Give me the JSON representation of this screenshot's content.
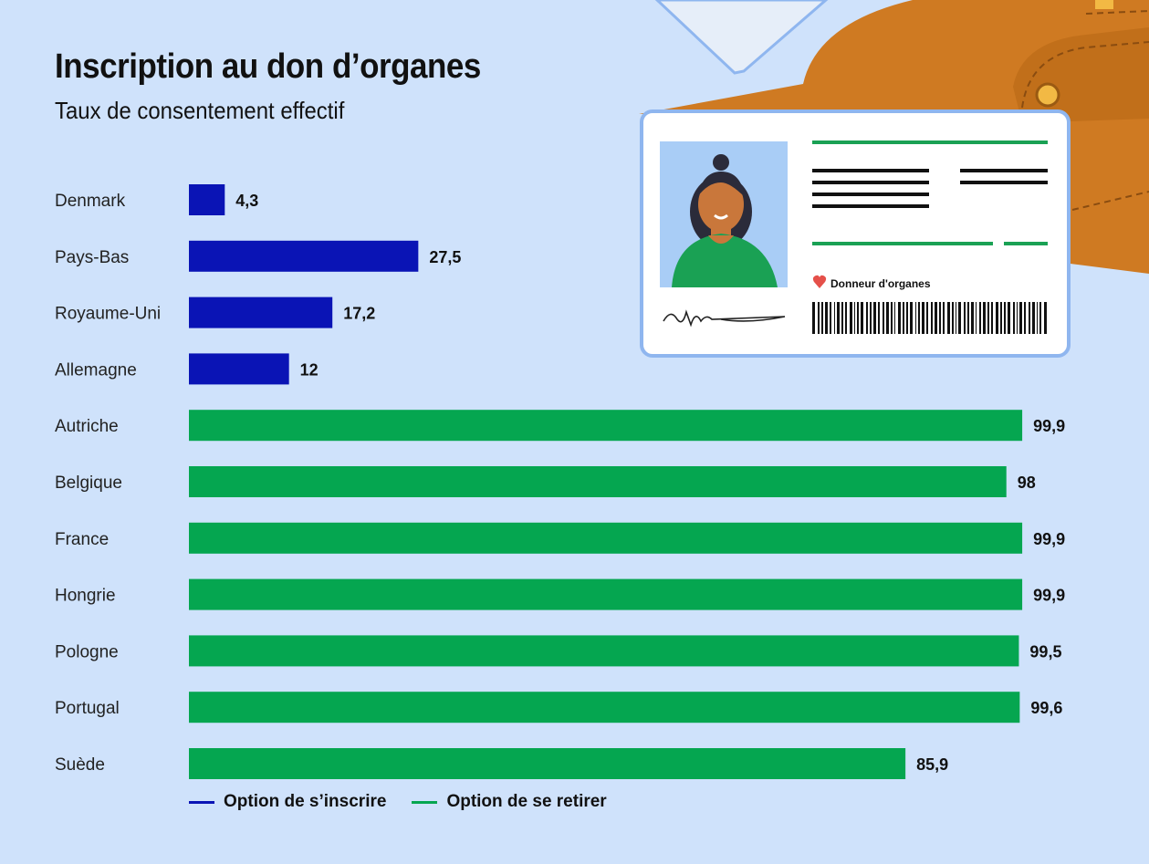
{
  "title": "Inscription au don d’organes",
  "subtitle": "Taux de consentement effectif",
  "card": {
    "label": "Donneur d'organes",
    "heart_icon": "heart-icon"
  },
  "colors": {
    "opt_in": "#0a14b5",
    "opt_out": "#05a650",
    "background": "#cfe2fb",
    "wallet": "#cf7a22",
    "card": "#ffffff",
    "photo_bg": "#a9cdf6",
    "shirt": "#1aa154",
    "skin": "#c9773b",
    "hair": "#2b2b3a"
  },
  "chart_data": {
    "type": "bar",
    "orientation": "horizontal",
    "title": "Inscription au don d’organes",
    "subtitle": "Taux de consentement effectif",
    "categories": [
      "Denmark",
      "Pays-Bas",
      "Royaume-Uni",
      "Allemagne",
      "Autriche",
      "Belgique",
      "France",
      "Hongrie",
      "Pologne",
      "Portugal",
      "Suède"
    ],
    "values": [
      4.3,
      27.5,
      17.2,
      12,
      99.9,
      98,
      99.9,
      99.9,
      99.5,
      99.6,
      85.9
    ],
    "value_labels": [
      "4,3",
      "27,5",
      "17,2",
      "12",
      "99,9",
      "98",
      "99,9",
      "99,9",
      "99,5",
      "99,6",
      "85,9"
    ],
    "groups": [
      "opt_in",
      "opt_in",
      "opt_in",
      "opt_in",
      "opt_out",
      "opt_out",
      "opt_out",
      "opt_out",
      "opt_out",
      "opt_out",
      "opt_out"
    ],
    "series": [
      {
        "key": "opt_in",
        "name": "Option de s’inscrire",
        "color": "#0a14b5"
      },
      {
        "key": "opt_out",
        "name": "Option de se retirer",
        "color": "#05a650"
      }
    ],
    "xlim": [
      0,
      100
    ],
    "grid": false,
    "legend_position": "bottom-left"
  }
}
